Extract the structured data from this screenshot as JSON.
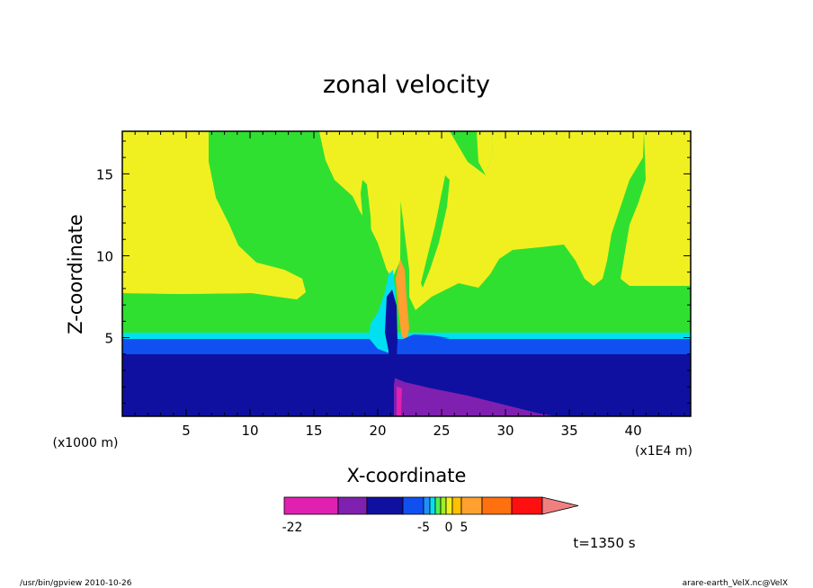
{
  "chart_data": {
    "type": "contour",
    "title": "zonal velocity",
    "xlabel": "X-coordinate",
    "ylabel": "Z-coordinate",
    "x_unit": "(x1E4 m)",
    "y_unit": "(x1000 m)",
    "xlim": [
      0,
      44.5
    ],
    "ylim": [
      0.2,
      17.6
    ],
    "xticks": [
      5,
      10,
      15,
      20,
      25,
      30,
      35,
      40
    ],
    "xtick_labels": [
      "5",
      "10",
      "15",
      "20",
      "25",
      "30",
      "35",
      "40"
    ],
    "yticks": [
      5,
      10,
      15
    ],
    "ytick_labels": [
      "5",
      "10",
      "15"
    ],
    "levels": [
      -22,
      -18,
      -14,
      -10,
      -5,
      -4,
      -3,
      -2,
      -1,
      0,
      1,
      3,
      5,
      8,
      11
    ],
    "colorbar": {
      "labels": [
        "-22",
        "-5",
        "0",
        "5"
      ],
      "colors": [
        "#e020b0",
        "#8020b0",
        "#1010a0",
        "#1050f0",
        "#2090ff",
        "#00e0f0",
        "#50f050",
        "#a0f020",
        "#f0f020",
        "#ffc000",
        "#ffa030",
        "#ff7010",
        "#ff1010",
        "#f08080"
      ]
    },
    "field_colors": {
      "strong_westward": "#e020b0",
      "westward": "#8020b0",
      "lower_layer": "#1010a0",
      "layer_blue": "#1050f0",
      "layer_cyan": "#00e0f0",
      "weak": "#30e030",
      "upper": "#f0f020",
      "eastward": "#ffa030"
    }
  },
  "annotations": {
    "time": "t=1350 s",
    "footer_left": "/usr/bin/gpview  2010-10-26",
    "footer_right": "arare-earth_VelX.nc@VelX"
  }
}
